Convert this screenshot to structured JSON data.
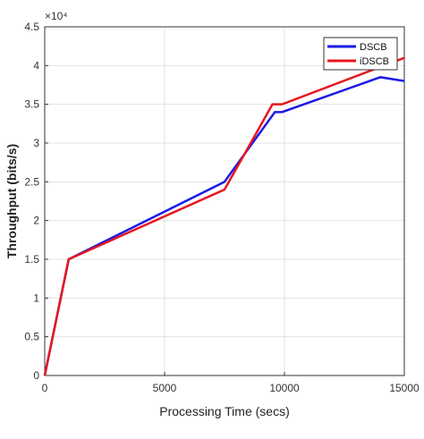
{
  "chart_data": {
    "type": "line",
    "xlabel": "Processing Time (secs)",
    "ylabel": "Throughput (bits/s)",
    "y_multiplier": "×10⁴",
    "xlim": [
      0,
      15000
    ],
    "xticks": [
      0,
      5000,
      10000,
      15000
    ],
    "ylim": [
      0,
      4.5
    ],
    "yticks": [
      0,
      0.5,
      1,
      1.5,
      2,
      2.5,
      3,
      3.5,
      4,
      4.5
    ],
    "grid": true,
    "legend": "top-right",
    "series": [
      {
        "name": "DSCB",
        "color": "#1a1ae6",
        "x": [
          0,
          1000,
          7500,
          9600,
          9900,
          14000,
          15000
        ],
        "values": [
          0,
          1.5,
          2.5,
          3.4,
          3.4,
          3.85,
          3.8
        ]
      },
      {
        "name": "iDSCB",
        "color": "#e6161e",
        "x": [
          0,
          1000,
          7500,
          9500,
          9900,
          15000
        ],
        "values": [
          0,
          1.5,
          2.4,
          3.5,
          3.5,
          4.1
        ]
      }
    ]
  }
}
